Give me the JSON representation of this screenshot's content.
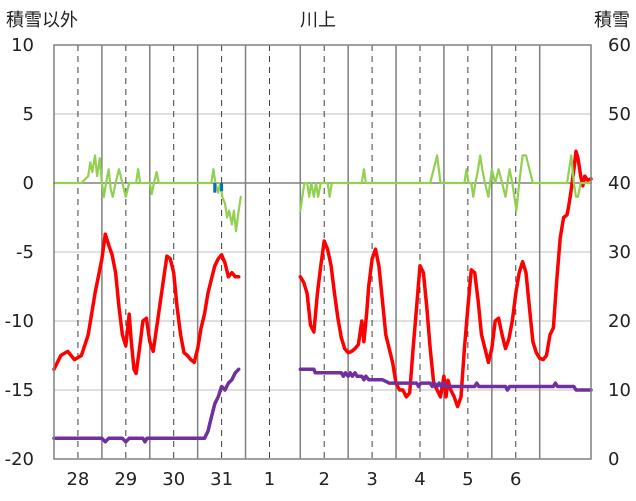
{
  "chart_data": {
    "type": "line",
    "title": "川上",
    "ylabel_left": "積雪以外",
    "ylabel_right": "積雪",
    "ylim_left": [
      -20,
      10
    ],
    "ylim_right": [
      0,
      60
    ],
    "yticks_left": [
      "10",
      "5",
      "0",
      "-5",
      "-10",
      "-15",
      "-20"
    ],
    "yticks_right": [
      "60",
      "50",
      "40",
      "30",
      "20",
      "10",
      "0"
    ],
    "x_day_labels": [
      "28",
      "29",
      "30",
      "31",
      "1",
      "2",
      "3",
      "4",
      "5",
      "6"
    ],
    "grid": true,
    "colors": {
      "temperature": "#ff0000",
      "snow_depth": "#7030a0",
      "temp_change": "#92d050",
      "precip": "#0070c0"
    },
    "series": [
      {
        "key": "temperature",
        "axis": "left",
        "points": [
          [
            0,
            -13.5
          ],
          [
            1,
            -12.5
          ],
          [
            2,
            -12.2
          ],
          [
            3,
            -12.8
          ],
          [
            4,
            -12.5
          ],
          [
            5,
            -11
          ],
          [
            6,
            -8
          ],
          [
            7,
            -5.5
          ],
          [
            7.5,
            -3.7
          ],
          [
            8,
            -4.5
          ],
          [
            8.5,
            -5.2
          ],
          [
            9,
            -6.5
          ],
          [
            9.5,
            -9
          ],
          [
            10,
            -11
          ],
          [
            10.5,
            -11.8
          ],
          [
            11,
            -9.5
          ],
          [
            11.3,
            -11.5
          ],
          [
            11.7,
            -13.5
          ],
          [
            12,
            -13.8
          ],
          [
            12.5,
            -12
          ],
          [
            13,
            -10
          ],
          [
            13.5,
            -9.8
          ],
          [
            14,
            -11.5
          ],
          [
            14.5,
            -12.2
          ],
          [
            15,
            -10.5
          ],
          [
            16,
            -7
          ],
          [
            16.5,
            -5.3
          ],
          [
            17,
            -5.5
          ],
          [
            17.5,
            -6.5
          ],
          [
            18,
            -9
          ],
          [
            18.5,
            -11
          ],
          [
            19,
            -12.3
          ],
          [
            19.5,
            -12.5
          ],
          [
            20,
            -12.8
          ],
          [
            20.5,
            -13
          ],
          [
            21,
            -12
          ],
          [
            21.5,
            -10.5
          ],
          [
            22,
            -9.5
          ],
          [
            22.5,
            -8
          ],
          [
            23,
            -7
          ],
          [
            23.5,
            -6
          ],
          [
            24,
            -5.5
          ],
          [
            24.5,
            -5.2
          ],
          [
            25,
            -5.8
          ],
          [
            25.5,
            -6.8
          ],
          [
            26,
            -6.5
          ],
          [
            26.5,
            -6.8
          ],
          [
            27,
            -6.8
          ]
        ]
      },
      {
        "key": "temperature",
        "axis": "left",
        "points": [
          [
            36,
            -6.8
          ],
          [
            36.5,
            -7.2
          ],
          [
            37,
            -8
          ],
          [
            37.5,
            -10.3
          ],
          [
            38,
            -10.8
          ],
          [
            38.5,
            -8
          ],
          [
            39,
            -6
          ],
          [
            39.5,
            -4.2
          ],
          [
            40,
            -4.8
          ],
          [
            40.5,
            -6
          ],
          [
            41,
            -8
          ],
          [
            41.5,
            -9.8
          ],
          [
            42,
            -11.2
          ],
          [
            42.5,
            -12
          ],
          [
            43,
            -12.3
          ],
          [
            43.5,
            -12.2
          ],
          [
            44,
            -12
          ],
          [
            44.5,
            -11.7
          ],
          [
            45,
            -10
          ],
          [
            45.3,
            -11.5
          ],
          [
            45.7,
            -9.5
          ],
          [
            46,
            -7.5
          ],
          [
            46.5,
            -5.5
          ],
          [
            47,
            -4.8
          ],
          [
            47.5,
            -6
          ],
          [
            48,
            -8.5
          ],
          [
            48.5,
            -11
          ],
          [
            49,
            -12
          ],
          [
            49.5,
            -13
          ],
          [
            50,
            -14.5
          ],
          [
            50.5,
            -15
          ],
          [
            51,
            -15
          ],
          [
            51.5,
            -15.5
          ],
          [
            52,
            -15.2
          ],
          [
            52.5,
            -12
          ],
          [
            53,
            -9
          ],
          [
            53.5,
            -6
          ],
          [
            54,
            -6.5
          ],
          [
            54.5,
            -9
          ],
          [
            55,
            -12
          ],
          [
            55.5,
            -14.5
          ],
          [
            56,
            -15
          ],
          [
            56.5,
            -15.5
          ],
          [
            57,
            -14
          ],
          [
            57.3,
            -15.5
          ],
          [
            57.6,
            -14.3
          ],
          [
            58,
            -15
          ],
          [
            58.5,
            -15.5
          ],
          [
            59,
            -16.2
          ],
          [
            59.5,
            -15.5
          ],
          [
            60,
            -12
          ],
          [
            60.5,
            -9
          ],
          [
            61,
            -6.3
          ],
          [
            61.5,
            -6.5
          ],
          [
            62,
            -8.5
          ],
          [
            62.5,
            -11
          ],
          [
            63,
            -12
          ],
          [
            63.5,
            -13
          ],
          [
            64,
            -12
          ],
          [
            64.5,
            -10
          ],
          [
            65,
            -9.8
          ],
          [
            65.5,
            -11
          ],
          [
            66,
            -12
          ],
          [
            66.5,
            -11.3
          ],
          [
            67,
            -10
          ],
          [
            67.5,
            -8
          ],
          [
            68,
            -6.5
          ],
          [
            68.5,
            -5.7
          ],
          [
            69,
            -6.5
          ],
          [
            69.5,
            -9
          ],
          [
            70,
            -11.5
          ],
          [
            70.5,
            -12.3
          ],
          [
            71,
            -12.7
          ],
          [
            71.5,
            -12.8
          ],
          [
            72,
            -12.5
          ],
          [
            72.5,
            -11
          ],
          [
            73,
            -10.5
          ],
          [
            73.5,
            -7
          ],
          [
            74,
            -4
          ],
          [
            74.5,
            -2.5
          ],
          [
            75,
            -2.3
          ],
          [
            75.3,
            -1.5
          ],
          [
            75.6,
            -0.5
          ],
          [
            76,
            1
          ],
          [
            76.3,
            2.3
          ],
          [
            76.6,
            1.8
          ],
          [
            77,
            0.5
          ],
          [
            77.3,
            -0.2
          ],
          [
            77.6,
            0.5
          ],
          [
            78,
            0.2
          ],
          [
            78.5,
            0.3
          ]
        ]
      },
      {
        "key": "temp_change",
        "axis": "left",
        "points": [
          [
            0,
            0
          ],
          [
            4,
            0
          ],
          [
            5,
            0.5
          ],
          [
            5.3,
            1.5
          ],
          [
            5.6,
            0.8
          ],
          [
            6,
            2
          ],
          [
            6.3,
            0.5
          ],
          [
            6.7,
            1.8
          ],
          [
            7,
            0
          ],
          [
            7.3,
            -1
          ],
          [
            7.6,
            0
          ],
          [
            8,
            1
          ],
          [
            8.3,
            -0.5
          ],
          [
            8.6,
            -1
          ],
          [
            9,
            0
          ],
          [
            9.5,
            1
          ],
          [
            10,
            0
          ],
          [
            10.5,
            -1
          ],
          [
            11,
            0
          ],
          [
            12,
            0
          ],
          [
            12.3,
            1
          ],
          [
            12.6,
            0
          ],
          [
            13,
            0
          ],
          [
            14,
            0
          ],
          [
            14.3,
            -0.8
          ],
          [
            14.6,
            0
          ],
          [
            15,
            0.8
          ],
          [
            15.3,
            0
          ],
          [
            16,
            0
          ],
          [
            23,
            0
          ],
          [
            23.3,
            1
          ],
          [
            23.6,
            0
          ],
          [
            24,
            -0.7
          ],
          [
            24.3,
            0
          ],
          [
            24.6,
            -1
          ],
          [
            25,
            -1.5
          ],
          [
            25.3,
            -2.5
          ],
          [
            25.6,
            -2
          ],
          [
            26,
            -3
          ],
          [
            26.3,
            -2
          ],
          [
            26.6,
            -3.5
          ],
          [
            27,
            -2
          ],
          [
            27.3,
            -1
          ]
        ]
      },
      {
        "key": "temp_change",
        "axis": "left",
        "points": [
          [
            36,
            -2
          ],
          [
            36.3,
            -1
          ],
          [
            36.6,
            0
          ],
          [
            37,
            0
          ],
          [
            37.3,
            -1
          ],
          [
            37.6,
            0
          ],
          [
            38,
            -1
          ],
          [
            38.3,
            0
          ],
          [
            38.6,
            -1
          ],
          [
            39,
            0
          ],
          [
            40,
            0
          ],
          [
            40.3,
            -1
          ],
          [
            40.6,
            0
          ],
          [
            41,
            0
          ],
          [
            42,
            0
          ],
          [
            45,
            0
          ],
          [
            45.3,
            1
          ],
          [
            45.6,
            0
          ],
          [
            46,
            0
          ],
          [
            47,
            0
          ],
          [
            55,
            0
          ],
          [
            55.5,
            1
          ],
          [
            56,
            2
          ],
          [
            56.5,
            0
          ],
          [
            57,
            0
          ],
          [
            60,
            0
          ],
          [
            60.3,
            1
          ],
          [
            60.6,
            0
          ],
          [
            61,
            0
          ],
          [
            61.3,
            -1
          ],
          [
            61.6,
            0
          ],
          [
            62,
            1
          ],
          [
            62.3,
            2
          ],
          [
            62.6,
            1
          ],
          [
            63,
            0
          ],
          [
            63.5,
            -1
          ],
          [
            64,
            1
          ],
          [
            64.5,
            0
          ],
          [
            65,
            1
          ],
          [
            65.5,
            0
          ],
          [
            66,
            -1
          ],
          [
            66.3,
            0
          ],
          [
            66.6,
            1
          ],
          [
            67,
            0
          ],
          [
            67.3,
            -1
          ],
          [
            67.6,
            -2
          ],
          [
            68,
            0
          ],
          [
            68.5,
            2
          ],
          [
            69,
            2
          ],
          [
            69.5,
            1
          ],
          [
            70,
            0
          ],
          [
            75,
            0
          ],
          [
            75.3,
            1
          ],
          [
            75.6,
            2
          ],
          [
            76,
            0
          ],
          [
            76.3,
            -1
          ],
          [
            76.6,
            -1
          ],
          [
            77,
            0
          ],
          [
            77.5,
            0
          ],
          [
            78.5,
            0
          ]
        ]
      },
      {
        "key": "snow_depth",
        "axis": "right",
        "points": [
          [
            0,
            3
          ],
          [
            7,
            3
          ],
          [
            7.5,
            2.5
          ],
          [
            8,
            3
          ],
          [
            10,
            3
          ],
          [
            10.5,
            2.5
          ],
          [
            11,
            3
          ],
          [
            13,
            3
          ],
          [
            13.3,
            2.5
          ],
          [
            13.6,
            3
          ],
          [
            22,
            3
          ],
          [
            22.5,
            4
          ],
          [
            23,
            6
          ],
          [
            23.5,
            8
          ],
          [
            24,
            9
          ],
          [
            24.5,
            10.5
          ],
          [
            25,
            10
          ],
          [
            25.5,
            11
          ],
          [
            26,
            11.5
          ],
          [
            26.5,
            12.5
          ],
          [
            27,
            13
          ]
        ]
      },
      {
        "key": "snow_depth",
        "axis": "right",
        "points": [
          [
            36,
            13
          ],
          [
            38,
            13
          ],
          [
            38.2,
            12.5
          ],
          [
            42,
            12.5
          ],
          [
            42.3,
            12
          ],
          [
            42.6,
            12.5
          ],
          [
            43,
            12
          ],
          [
            43.3,
            12.5
          ],
          [
            43.6,
            12
          ],
          [
            44,
            12.5
          ],
          [
            44.3,
            12
          ],
          [
            45,
            12
          ],
          [
            45.3,
            11.5
          ],
          [
            45.6,
            12
          ],
          [
            46,
            11.5
          ],
          [
            47,
            11.5
          ],
          [
            48,
            11.5
          ],
          [
            49,
            11
          ],
          [
            53,
            11
          ],
          [
            53.3,
            10.5
          ],
          [
            53.6,
            11
          ],
          [
            55,
            11
          ],
          [
            55.3,
            10.5
          ],
          [
            55.6,
            11
          ],
          [
            56,
            10.5
          ],
          [
            56.3,
            11
          ],
          [
            56.6,
            10.5
          ],
          [
            57,
            11
          ],
          [
            57.3,
            10.5
          ],
          [
            58,
            10.5
          ],
          [
            59,
            10.5
          ],
          [
            60,
            10.5
          ],
          [
            61.5,
            10.5
          ],
          [
            61.8,
            11
          ],
          [
            62.1,
            10.5
          ],
          [
            66,
            10.5
          ],
          [
            66.3,
            10
          ],
          [
            66.6,
            10.5
          ],
          [
            73,
            10.5
          ],
          [
            73.3,
            11
          ],
          [
            73.6,
            10.5
          ],
          [
            76,
            10.5
          ],
          [
            76.3,
            10
          ],
          [
            78.5,
            10
          ]
        ]
      },
      {
        "key": "precip",
        "axis": "left",
        "bars": [
          [
            23.5,
            -0.7
          ],
          [
            24.5,
            -0.6
          ]
        ]
      }
    ]
  }
}
